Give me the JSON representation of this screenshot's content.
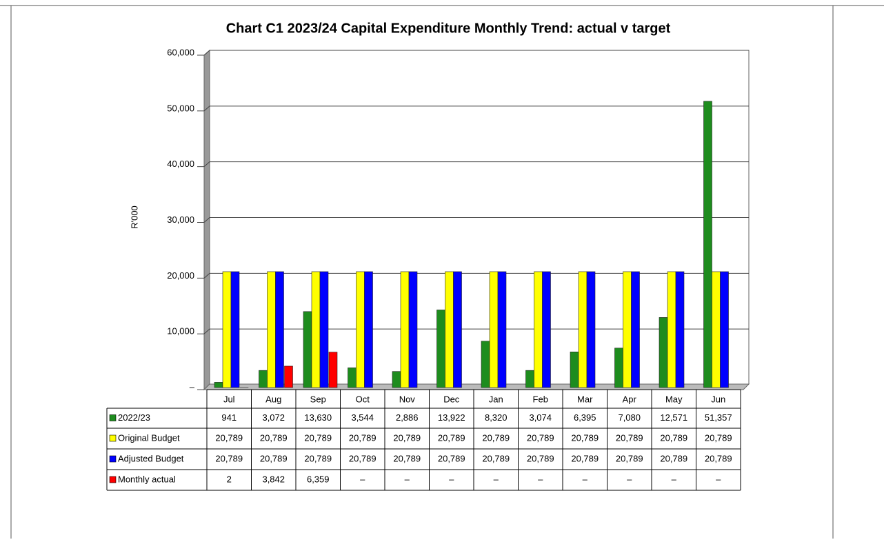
{
  "chart_data": {
    "type": "bar",
    "title": "Chart C1 2023/24 Capital Expenditure Monthly Trend: actual v target",
    "y_label": "R'000",
    "categories": [
      "Jul",
      "Aug",
      "Sep",
      "Oct",
      "Nov",
      "Dec",
      "Jan",
      "Feb",
      "Mar",
      "Apr",
      "May",
      "Jun"
    ],
    "series": [
      {
        "name": "2022/23",
        "color": "#1e8c1e",
        "values": [
          941,
          3072,
          13630,
          3544,
          2886,
          13922,
          8320,
          3074,
          6395,
          7080,
          12571,
          51357
        ],
        "value_labels": [
          "941",
          "3,072",
          "13,630",
          "3,544",
          "2,886",
          "13,922",
          "8,320",
          "3,074",
          "6,395",
          "7,080",
          "12,571",
          "51,357"
        ]
      },
      {
        "name": "Original Budget",
        "color": "#ffff00",
        "values": [
          20789,
          20789,
          20789,
          20789,
          20789,
          20789,
          20789,
          20789,
          20789,
          20789,
          20789,
          20789
        ],
        "value_labels": [
          "20,789",
          "20,789",
          "20,789",
          "20,789",
          "20,789",
          "20,789",
          "20,789",
          "20,789",
          "20,789",
          "20,789",
          "20,789",
          "20,789"
        ]
      },
      {
        "name": "Adjusted Budget",
        "color": "#0000ff",
        "values": [
          20789,
          20789,
          20789,
          20789,
          20789,
          20789,
          20789,
          20789,
          20789,
          20789,
          20789,
          20789
        ],
        "value_labels": [
          "20,789",
          "20,789",
          "20,789",
          "20,789",
          "20,789",
          "20,789",
          "20,789",
          "20,789",
          "20,789",
          "20,789",
          "20,789",
          "20,789"
        ]
      },
      {
        "name": "Monthly actual",
        "color": "#ff0000",
        "values": [
          2,
          3842,
          6359,
          null,
          null,
          null,
          null,
          null,
          null,
          null,
          null,
          null
        ],
        "value_labels": [
          "2",
          "3,842",
          "6,359",
          "–",
          "–",
          "–",
          "–",
          "–",
          "–",
          "–",
          "–",
          "–"
        ]
      }
    ],
    "ylim": [
      0,
      60000
    ],
    "yticks": [
      {
        "value": 0,
        "label": "–"
      },
      {
        "value": 10000,
        "label": "10,000"
      },
      {
        "value": 20000,
        "label": "20,000"
      },
      {
        "value": 30000,
        "label": "30,000"
      },
      {
        "value": 40000,
        "label": "40,000"
      },
      {
        "value": 50000,
        "label": "50,000"
      },
      {
        "value": 60000,
        "label": "60,000"
      }
    ],
    "grid": true
  }
}
